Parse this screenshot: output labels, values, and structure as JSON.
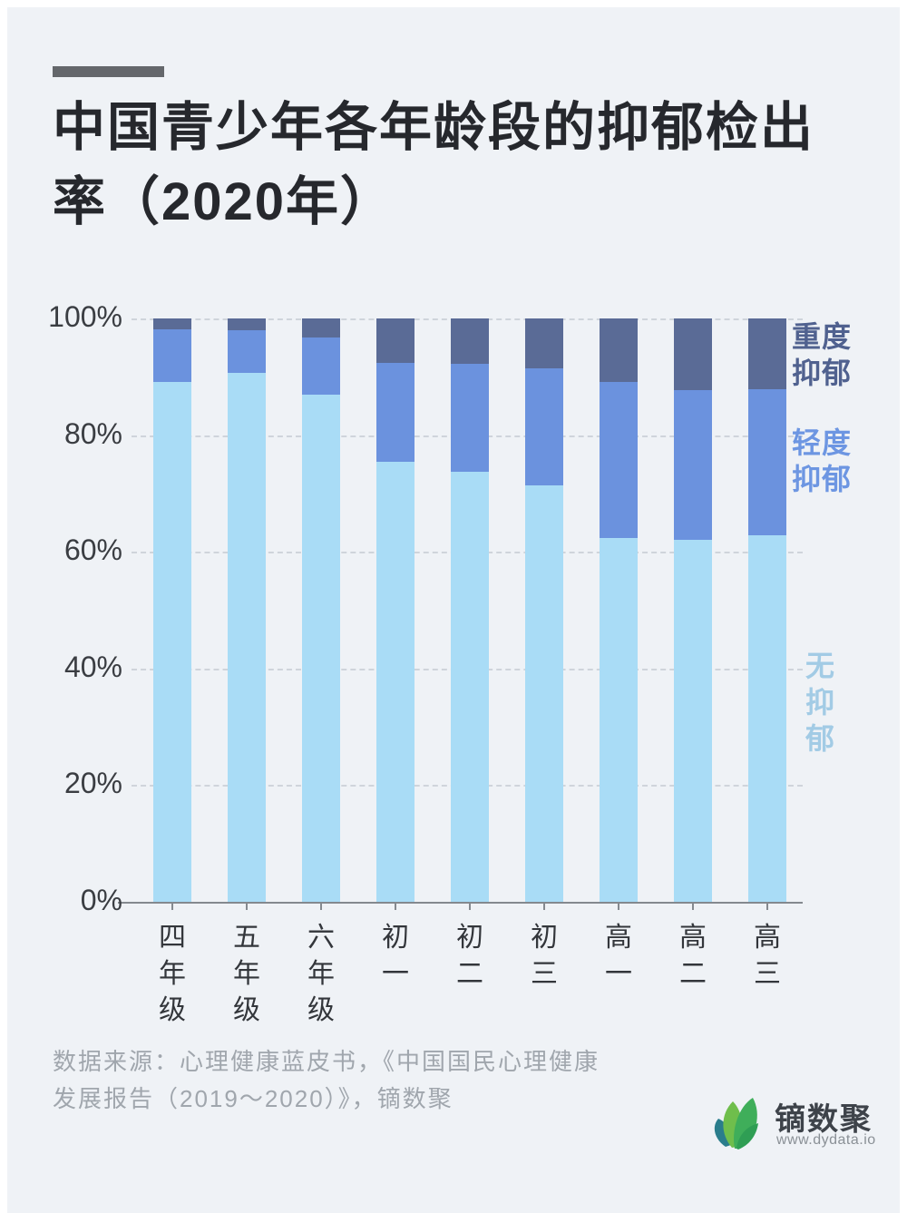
{
  "header": {
    "title": "中国青少年各年龄段的抑郁检出\n率（2020年）",
    "dash_color": "#64676B"
  },
  "chart_data": {
    "type": "bar",
    "stacked": true,
    "title": "中国青少年各年龄段的抑郁检出率（2020年）",
    "categories": [
      "四年级",
      "五年级",
      "六年级",
      "初一",
      "初二",
      "初三",
      "高一",
      "高二",
      "高三"
    ],
    "series": [
      {
        "name": "无抑郁",
        "legend_display": "无\n抑\n郁",
        "color": "#A9DCF6",
        "label_color": "#A2CBE5",
        "values": [
          89.1,
          90.6,
          87.0,
          75.5,
          73.7,
          71.4,
          62.4,
          62.0,
          62.8
        ]
      },
      {
        "name": "轻度抑郁",
        "legend_display": "轻度\n抑郁",
        "color": "#6B92DE",
        "label_color": "#6D96E2",
        "values": [
          9.0,
          7.4,
          9.7,
          16.9,
          18.6,
          20.0,
          26.7,
          25.7,
          25.0
        ]
      },
      {
        "name": "重度抑郁",
        "legend_display": "重度\n抑郁",
        "color": "#5A6B96",
        "label_color": "#50618F",
        "values": [
          1.9,
          2.0,
          3.3,
          7.6,
          7.7,
          8.6,
          10.9,
          12.3,
          12.2
        ]
      }
    ],
    "unit": "%",
    "y_ticks": [
      "0%",
      "20%",
      "40%",
      "60%",
      "80%",
      "100%"
    ],
    "ylim": [
      0,
      100
    ],
    "grid": "dashed-horizontal",
    "legend_position": "right"
  },
  "footer": {
    "source": "数据来源：心理健康蓝皮书，《中国国民心理健康\n发展报告（2019～2020）》，镝数聚",
    "logo_text": "镝数聚",
    "logo_url": "www.dydata.io"
  }
}
